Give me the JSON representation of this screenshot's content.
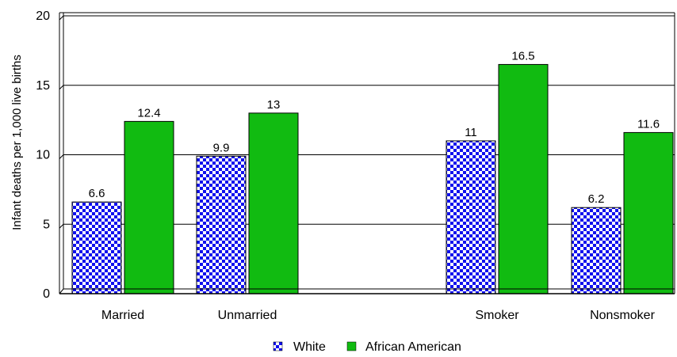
{
  "chart_data": {
    "type": "bar",
    "title": "",
    "xlabel": "",
    "ylabel": "Infant deaths per 1,000 live births",
    "ylim": [
      0,
      20
    ],
    "yticks": [
      "0",
      "5",
      "10",
      "15",
      "20"
    ],
    "grid": true,
    "legend_position": "bottom",
    "categories": [
      "Married",
      "Unmarried",
      "Smoker",
      "Nonsmoker"
    ],
    "series": [
      {
        "name": "White",
        "values": [
          6.6,
          9.9,
          11,
          6.2
        ],
        "labels": [
          "6.6",
          "9.9",
          "11",
          "6.2"
        ],
        "pattern": "checkerboard",
        "colors": [
          "#1010ee",
          "#ffffff"
        ]
      },
      {
        "name": "African American",
        "values": [
          12.4,
          13,
          16.5,
          11.6
        ],
        "labels": [
          "12.4",
          "13",
          "16.5",
          "11.6"
        ],
        "color": "#11bb11"
      }
    ]
  }
}
